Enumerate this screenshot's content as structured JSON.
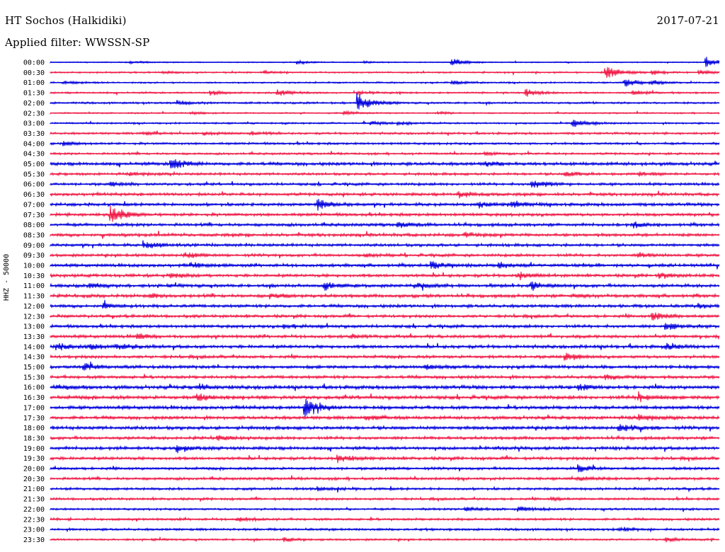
{
  "header": {
    "station": "HT Sochos (Halkidiki)",
    "date": "2017-07-21",
    "filter": "Applied filter: WWSSN-SP"
  },
  "chart_data": {
    "type": "line",
    "title": "HT Sochos (Halkidiki)",
    "ylabel": "HHZ - 50000",
    "xlabel": "",
    "colors": [
      "#0000dd",
      "#f01845"
    ],
    "rows": [
      {
        "label": "00:00",
        "noise": 0.6,
        "events": [
          {
            "t": 0.12,
            "a": 2
          },
          {
            "t": 0.37,
            "a": 3
          },
          {
            "t": 0.47,
            "a": 1.5
          },
          {
            "t": 0.6,
            "a": 7
          },
          {
            "t": 0.98,
            "a": 9
          }
        ]
      },
      {
        "label": "00:30",
        "noise": 0.9,
        "events": [
          {
            "t": 0.17,
            "a": 2
          },
          {
            "t": 0.32,
            "a": 2
          },
          {
            "t": 0.83,
            "a": 12
          },
          {
            "t": 0.9,
            "a": 3
          },
          {
            "t": 0.97,
            "a": 3
          }
        ]
      },
      {
        "label": "01:00",
        "noise": 0.9,
        "events": [
          {
            "t": 0.02,
            "a": 3
          },
          {
            "t": 0.6,
            "a": 3
          },
          {
            "t": 0.86,
            "a": 7
          },
          {
            "t": 0.9,
            "a": 3
          }
        ]
      },
      {
        "label": "01:30",
        "noise": 1.0,
        "events": [
          {
            "t": 0.24,
            "a": 4
          },
          {
            "t": 0.34,
            "a": 5
          },
          {
            "t": 0.46,
            "a": 2
          },
          {
            "t": 0.71,
            "a": 7
          },
          {
            "t": 0.87,
            "a": 4
          }
        ]
      },
      {
        "label": "02:00",
        "noise": 1.1,
        "events": [
          {
            "t": 0.19,
            "a": 3
          },
          {
            "t": 0.46,
            "a": 14
          }
        ]
      },
      {
        "label": "02:30",
        "noise": 0.8,
        "events": [
          {
            "t": 0.21,
            "a": 2
          },
          {
            "t": 0.44,
            "a": 3
          },
          {
            "t": 0.58,
            "a": 2
          }
        ]
      },
      {
        "label": "03:00",
        "noise": 1.0,
        "events": [
          {
            "t": 0.48,
            "a": 3
          },
          {
            "t": 0.52,
            "a": 2
          },
          {
            "t": 0.78,
            "a": 7
          }
        ]
      },
      {
        "label": "03:30",
        "noise": 1.2,
        "events": [
          {
            "t": 0.14,
            "a": 3
          },
          {
            "t": 0.23,
            "a": 3
          },
          {
            "t": 0.3,
            "a": 2
          }
        ]
      },
      {
        "label": "04:00",
        "noise": 1.3,
        "events": [
          {
            "t": 0.02,
            "a": 3
          }
        ]
      },
      {
        "label": "04:30",
        "noise": 1.2,
        "events": [
          {
            "t": 0.65,
            "a": 2
          }
        ]
      },
      {
        "label": "05:00",
        "noise": 1.8,
        "events": [
          {
            "t": 0.18,
            "a": 10
          },
          {
            "t": 0.65,
            "a": 4
          }
        ]
      },
      {
        "label": "05:30",
        "noise": 1.4,
        "events": [
          {
            "t": 0.12,
            "a": 2
          },
          {
            "t": 0.77,
            "a": 4
          },
          {
            "t": 0.88,
            "a": 3
          }
        ]
      },
      {
        "label": "06:00",
        "noise": 1.5,
        "events": [
          {
            "t": 0.09,
            "a": 3
          },
          {
            "t": 0.72,
            "a": 7
          }
        ]
      },
      {
        "label": "06:30",
        "noise": 1.6,
        "events": [
          {
            "t": 0.61,
            "a": 5
          }
        ]
      },
      {
        "label": "07:00",
        "noise": 1.7,
        "events": [
          {
            "t": 0.4,
            "a": 8
          },
          {
            "t": 0.64,
            "a": 4
          },
          {
            "t": 0.69,
            "a": 6
          }
        ]
      },
      {
        "label": "07:30",
        "noise": 1.7,
        "events": [
          {
            "t": 0.09,
            "a": 13
          }
        ]
      },
      {
        "label": "08:00",
        "noise": 1.7,
        "events": [
          {
            "t": 0.52,
            "a": 4
          },
          {
            "t": 0.87,
            "a": 4
          }
        ]
      },
      {
        "label": "08:30",
        "noise": 1.7,
        "events": [
          {
            "t": 0.62,
            "a": 3
          }
        ]
      },
      {
        "label": "09:00",
        "noise": 1.6,
        "events": [
          {
            "t": 0.14,
            "a": 6
          }
        ]
      },
      {
        "label": "09:30",
        "noise": 1.6,
        "events": [
          {
            "t": 0.2,
            "a": 4
          },
          {
            "t": 0.47,
            "a": 3
          },
          {
            "t": 0.88,
            "a": 3
          }
        ]
      },
      {
        "label": "10:00",
        "noise": 1.7,
        "events": [
          {
            "t": 0.21,
            "a": 4
          },
          {
            "t": 0.57,
            "a": 6
          },
          {
            "t": 0.67,
            "a": 5
          }
        ]
      },
      {
        "label": "10:30",
        "noise": 1.7,
        "events": [
          {
            "t": 0.18,
            "a": 3
          },
          {
            "t": 0.7,
            "a": 6
          },
          {
            "t": 0.91,
            "a": 4
          }
        ]
      },
      {
        "label": "11:00",
        "noise": 1.8,
        "events": [
          {
            "t": 0.06,
            "a": 4
          },
          {
            "t": 0.41,
            "a": 7
          },
          {
            "t": 0.55,
            "a": 4
          },
          {
            "t": 0.72,
            "a": 6
          }
        ]
      },
      {
        "label": "11:30",
        "noise": 1.8,
        "events": [
          {
            "t": 0.15,
            "a": 3
          },
          {
            "t": 0.33,
            "a": 4
          },
          {
            "t": 0.78,
            "a": 3
          }
        ]
      },
      {
        "label": "12:00",
        "noise": 1.7,
        "events": [
          {
            "t": 0.08,
            "a": 3
          },
          {
            "t": 0.97,
            "a": 3
          }
        ]
      },
      {
        "label": "12:30",
        "noise": 1.6,
        "events": [
          {
            "t": 0.9,
            "a": 8
          }
        ]
      },
      {
        "label": "13:00",
        "noise": 1.7,
        "events": [
          {
            "t": 0.35,
            "a": 3
          },
          {
            "t": 0.92,
            "a": 6
          }
        ]
      },
      {
        "label": "13:30",
        "noise": 1.7,
        "events": [
          {
            "t": 0.13,
            "a": 4
          },
          {
            "t": 0.45,
            "a": 3
          }
        ]
      },
      {
        "label": "14:00",
        "noise": 1.8,
        "events": [
          {
            "t": 0.01,
            "a": 5
          },
          {
            "t": 0.06,
            "a": 4
          },
          {
            "t": 0.1,
            "a": 4
          },
          {
            "t": 0.92,
            "a": 5
          }
        ]
      },
      {
        "label": "14:30",
        "noise": 1.7,
        "events": [
          {
            "t": 0.77,
            "a": 6
          }
        ]
      },
      {
        "label": "15:00",
        "noise": 1.8,
        "events": [
          {
            "t": 0.05,
            "a": 6
          },
          {
            "t": 0.56,
            "a": 4
          }
        ]
      },
      {
        "label": "15:30",
        "noise": 1.7,
        "events": [
          {
            "t": 0.83,
            "a": 4
          }
        ]
      },
      {
        "label": "16:00",
        "noise": 2.0,
        "events": [
          {
            "t": 0.01,
            "a": 4
          },
          {
            "t": 0.22,
            "a": 4
          },
          {
            "t": 0.79,
            "a": 4
          }
        ]
      },
      {
        "label": "16:30",
        "noise": 2.0,
        "events": [
          {
            "t": 0.22,
            "a": 5
          },
          {
            "t": 0.88,
            "a": 7
          }
        ]
      },
      {
        "label": "17:00",
        "noise": 1.9,
        "events": [
          {
            "t": 0.38,
            "a": 14
          }
        ]
      },
      {
        "label": "17:30",
        "noise": 1.8,
        "events": [
          {
            "t": 0.47,
            "a": 4
          },
          {
            "t": 0.88,
            "a": 4
          }
        ]
      },
      {
        "label": "18:00",
        "noise": 1.9,
        "events": [
          {
            "t": 0.85,
            "a": 7
          }
        ]
      },
      {
        "label": "18:30",
        "noise": 1.7,
        "events": [
          {
            "t": 0.25,
            "a": 3
          }
        ]
      },
      {
        "label": "19:00",
        "noise": 1.8,
        "events": [
          {
            "t": 0.19,
            "a": 6
          }
        ]
      },
      {
        "label": "19:30",
        "noise": 1.7,
        "events": [
          {
            "t": 0.43,
            "a": 6
          }
        ]
      },
      {
        "label": "20:00",
        "noise": 1.5,
        "events": [
          {
            "t": 0.79,
            "a": 6
          }
        ]
      },
      {
        "label": "20:30",
        "noise": 1.5,
        "events": [
          {
            "t": 0.79,
            "a": 3
          }
        ]
      },
      {
        "label": "21:00",
        "noise": 1.4,
        "events": [
          {
            "t": 0.4,
            "a": 3
          }
        ]
      },
      {
        "label": "21:30",
        "noise": 1.3,
        "events": [
          {
            "t": 0.75,
            "a": 2
          }
        ]
      },
      {
        "label": "22:00",
        "noise": 1.2,
        "events": [
          {
            "t": 0.62,
            "a": 5
          },
          {
            "t": 0.7,
            "a": 5
          }
        ]
      },
      {
        "label": "22:30",
        "noise": 1.3,
        "events": [
          {
            "t": 0.28,
            "a": 3
          }
        ]
      },
      {
        "label": "23:00",
        "noise": 1.3,
        "events": [
          {
            "t": 0.85,
            "a": 3
          }
        ]
      },
      {
        "label": "23:30",
        "noise": 1.1,
        "events": [
          {
            "t": 0.35,
            "a": 3
          },
          {
            "t": 0.92,
            "a": 3
          }
        ]
      }
    ]
  }
}
